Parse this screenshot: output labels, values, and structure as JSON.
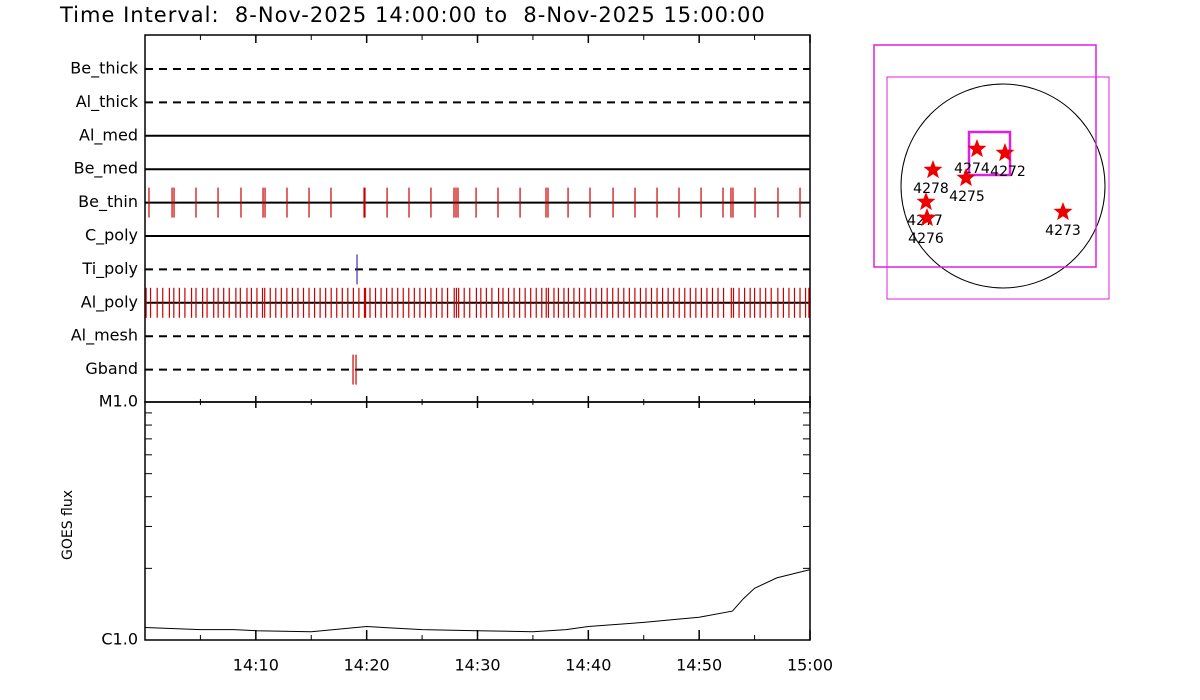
{
  "title": "Time Interval:  8-Nov-2025 14:00:00 to  8-Nov-2025 15:00:00",
  "chart_data": [
    {
      "type": "event",
      "xlim": [
        0,
        60
      ],
      "rows": [
        {
          "name": "Be_thick",
          "style": "dashed"
        },
        {
          "name": "Al_thick",
          "style": "dashed"
        },
        {
          "name": "Al_med",
          "style": "solid"
        },
        {
          "name": "Be_med",
          "style": "solid"
        },
        {
          "name": "Be_thin",
          "style": "solid",
          "color": "#cc0000",
          "times": [
            0.36,
            2.44,
            2.62,
            4.6,
            6.59,
            8.66,
            10.65,
            10.83,
            12.81,
            14.8,
            16.78,
            19.76,
            19.85,
            21.84,
            23.82,
            25.8,
            27.88,
            28.06,
            28.24,
            29.87,
            31.85,
            33.84,
            36.18,
            36.36,
            38.17,
            40.15,
            42.23,
            44.21,
            46.2,
            48.18,
            50.17,
            52.15,
            52.87,
            53.05,
            55.04,
            57.11,
            59.1
          ]
        },
        {
          "name": "C_poly",
          "style": "solid"
        },
        {
          "name": "Ti_poly",
          "style": "dashed",
          "color": "#3333aa",
          "times": [
            19.13
          ]
        },
        {
          "name": "Al_poly",
          "style": "solid",
          "color": "#cc0000",
          "times": [
            0.1,
            0.5,
            1.1,
            1.6,
            2.2,
            2.6,
            3.1,
            3.6,
            4.2,
            4.6,
            5.2,
            5.6,
            6.2,
            6.6,
            7.1,
            7.6,
            8.2,
            8.6,
            9.2,
            9.6,
            10.1,
            10.6,
            10.8,
            11.3,
            11.8,
            12.3,
            12.8,
            13.3,
            13.8,
            14.3,
            14.8,
            15.3,
            15.8,
            16.3,
            16.8,
            17.3,
            17.8,
            18.3,
            18.8,
            19.3,
            19.8,
            19.9,
            20.3,
            20.8,
            21.3,
            21.8,
            22.3,
            22.8,
            23.3,
            23.8,
            24.3,
            24.8,
            25.3,
            25.8,
            26.3,
            26.8,
            27.3,
            27.9,
            28.1,
            28.3,
            28.8,
            29.3,
            29.9,
            30.3,
            30.8,
            31.3,
            31.9,
            32.3,
            32.8,
            33.3,
            33.8,
            34.3,
            34.8,
            35.3,
            35.8,
            36.2,
            36.4,
            36.9,
            37.3,
            37.8,
            38.2,
            38.7,
            39.2,
            39.7,
            40.2,
            40.7,
            41.2,
            41.7,
            42.2,
            42.7,
            43.2,
            43.7,
            44.2,
            44.7,
            45.2,
            45.7,
            46.2,
            46.7,
            47.2,
            47.7,
            48.2,
            48.7,
            49.2,
            49.7,
            50.2,
            50.7,
            51.2,
            51.7,
            52.2,
            52.9,
            53.1,
            53.6,
            54.1,
            54.6,
            55.0,
            55.5,
            56.0,
            56.5,
            57.1,
            57.6,
            58.1,
            58.6,
            59.1,
            59.6,
            59.9
          ]
        },
        {
          "name": "Al_mesh",
          "style": "dashed"
        },
        {
          "name": "Gband",
          "style": "dashed",
          "color": "#cc0000",
          "times": [
            18.77,
            19.04
          ]
        }
      ]
    },
    {
      "type": "line",
      "y_label": "GOES flux",
      "color": "#000000",
      "log_y": true,
      "x": [
        0,
        5,
        8,
        10,
        15,
        20,
        25,
        30,
        35,
        38,
        40,
        45,
        48,
        50,
        53,
        54,
        55,
        57,
        60
      ],
      "values": [
        1.128e-06,
        1.105e-06,
        1.105e-06,
        1.094e-06,
        1.083e-06,
        1.139e-06,
        1.105e-06,
        1.094e-06,
        1.083e-06,
        1.105e-06,
        1.139e-06,
        1.186e-06,
        1.222e-06,
        1.246e-06,
        1.323e-06,
        1.493e-06,
        1.65e-06,
        1.824e-06,
        1.976e-06
      ],
      "xlim": [
        0,
        60
      ],
      "xticks": [
        {
          "value": 10,
          "label": "14:10"
        },
        {
          "value": 20,
          "label": "14:20"
        },
        {
          "value": 30,
          "label": "14:30"
        },
        {
          "value": 40,
          "label": "14:40"
        },
        {
          "value": 50,
          "label": "14:50"
        },
        {
          "value": 60,
          "label": "15:00"
        }
      ],
      "xminorticks": [
        0,
        5,
        15,
        25,
        35,
        45,
        55
      ],
      "ylim": [
        1e-06,
        1e-05
      ],
      "yticks": [
        {
          "value": 1e-06,
          "label": "C1.0"
        },
        {
          "value": 1e-05,
          "label": "M1.0"
        }
      ],
      "yminorticks": [
        2e-06,
        3e-06,
        4e-06,
        5e-06,
        6e-06,
        7e-06,
        8e-06,
        9e-06
      ]
    }
  ],
  "map": {
    "regions": [
      {
        "label": "4274"
      },
      {
        "label": "4272"
      },
      {
        "label": "4278"
      },
      {
        "label": "4275"
      },
      {
        "label": "4277"
      },
      {
        "label": "4276"
      },
      {
        "label": "4273"
      }
    ]
  }
}
